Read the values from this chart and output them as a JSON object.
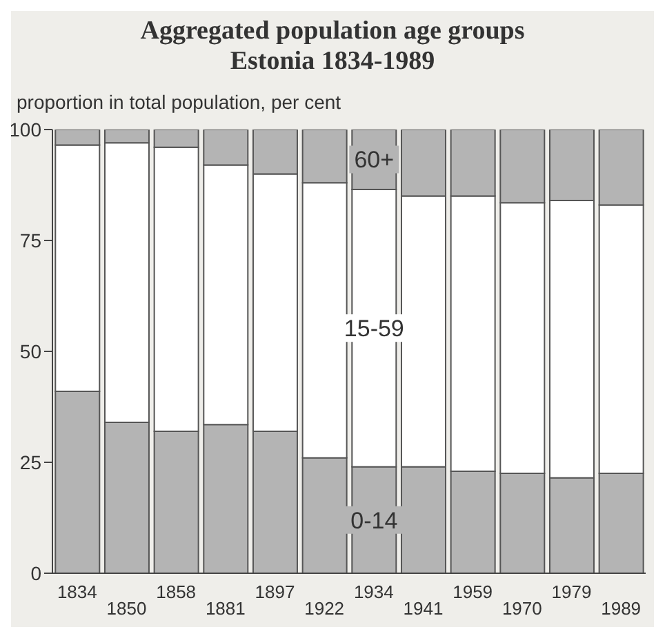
{
  "chart_data": {
    "type": "bar",
    "title": "Aggregated population age groups\nEstonia 1834-1989",
    "ylabel": "proportion in total population, per cent",
    "categories": [
      "1834",
      "1850",
      "1858",
      "1881",
      "1897",
      "1922",
      "1934",
      "1941",
      "1959",
      "1970",
      "1979",
      "1989"
    ],
    "stacked": true,
    "series": [
      {
        "name": "0-14",
        "color": "#b4b4b4",
        "values": [
          41,
          34,
          32,
          33.5,
          32,
          26,
          24,
          24,
          23,
          22.5,
          21.5,
          22.5
        ]
      },
      {
        "name": "15-59",
        "color": "#ffffff",
        "values": [
          55.5,
          63,
          64,
          58.5,
          58,
          62,
          62.5,
          61,
          62,
          61,
          62.5,
          60.5
        ]
      },
      {
        "name": "60+",
        "color": "#b4b4b4",
        "values": [
          3.5,
          3,
          4,
          8,
          10,
          12,
          13.5,
          15,
          15,
          16.5,
          16,
          17
        ]
      }
    ],
    "ylim": [
      0,
      100
    ],
    "yticks": [
      0,
      25,
      50,
      75,
      100
    ],
    "grid": false,
    "legend": false
  }
}
